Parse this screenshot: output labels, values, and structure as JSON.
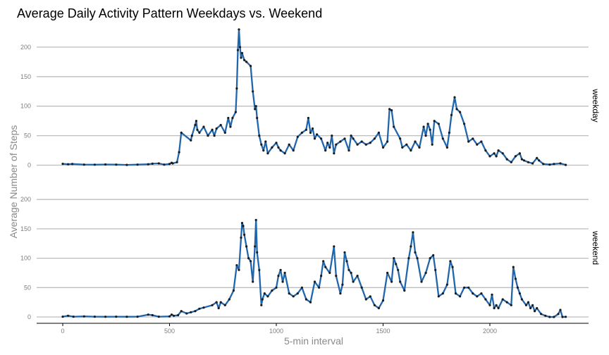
{
  "chart_data": {
    "type": "line",
    "title": "Average Daily Activity Pattern Weekdays vs. Weekend",
    "xlabel": "5-min interval",
    "ylabel": "Average Number of Steps",
    "xlim": [
      0,
      2355
    ],
    "ylim": [
      0,
      230
    ],
    "x_ticks": [
      "0",
      "500",
      "1000",
      "1500",
      "2000"
    ],
    "y_ticks": [
      "0",
      "50",
      "100",
      "150",
      "200"
    ],
    "grid": "horizontal",
    "line_color": "#2166ac",
    "point_color": "#1a1a1a",
    "panels": [
      {
        "name": "weekday",
        "points": [
          [
            0,
            2.3
          ],
          [
            25,
            1.5
          ],
          [
            45,
            2.0
          ],
          [
            100,
            1.0
          ],
          [
            150,
            0.8
          ],
          [
            200,
            1.2
          ],
          [
            250,
            1.0
          ],
          [
            300,
            0.5
          ],
          [
            350,
            1.0
          ],
          [
            400,
            1.5
          ],
          [
            420,
            2.5
          ],
          [
            450,
            3.0
          ],
          [
            475,
            1.0
          ],
          [
            500,
            2.0
          ],
          [
            510,
            4.0
          ],
          [
            515,
            3.0
          ],
          [
            535,
            5.0
          ],
          [
            545,
            22
          ],
          [
            555,
            55
          ],
          [
            600,
            42
          ],
          [
            605,
            50
          ],
          [
            620,
            68
          ],
          [
            625,
            75
          ],
          [
            630,
            60
          ],
          [
            640,
            55
          ],
          [
            660,
            65
          ],
          [
            680,
            50
          ],
          [
            700,
            60
          ],
          [
            710,
            50
          ],
          [
            720,
            62
          ],
          [
            740,
            68
          ],
          [
            760,
            55
          ],
          [
            775,
            80
          ],
          [
            785,
            65
          ],
          [
            795,
            80
          ],
          [
            810,
            90
          ],
          [
            815,
            130
          ],
          [
            820,
            195
          ],
          [
            825,
            230
          ],
          [
            830,
            200
          ],
          [
            835,
            182
          ],
          [
            840,
            190
          ],
          [
            850,
            178
          ],
          [
            860,
            175
          ],
          [
            880,
            168
          ],
          [
            890,
            125
          ],
          [
            900,
            95
          ],
          [
            905,
            100
          ],
          [
            910,
            80
          ],
          [
            920,
            50
          ],
          [
            930,
            35
          ],
          [
            940,
            25
          ],
          [
            950,
            40
          ],
          [
            960,
            20
          ],
          [
            980,
            30
          ],
          [
            1000,
            38
          ],
          [
            1010,
            30
          ],
          [
            1020,
            25
          ],
          [
            1040,
            20
          ],
          [
            1060,
            35
          ],
          [
            1080,
            25
          ],
          [
            1100,
            48
          ],
          [
            1120,
            55
          ],
          [
            1140,
            60
          ],
          [
            1150,
            80
          ],
          [
            1160,
            55
          ],
          [
            1170,
            62
          ],
          [
            1180,
            45
          ],
          [
            1190,
            52
          ],
          [
            1210,
            45
          ],
          [
            1230,
            25
          ],
          [
            1240,
            38
          ],
          [
            1250,
            30
          ],
          [
            1260,
            50
          ],
          [
            1270,
            20
          ],
          [
            1280,
            35
          ],
          [
            1300,
            40
          ],
          [
            1320,
            45
          ],
          [
            1340,
            25
          ],
          [
            1350,
            50
          ],
          [
            1360,
            45
          ],
          [
            1380,
            35
          ],
          [
            1400,
            40
          ],
          [
            1420,
            35
          ],
          [
            1440,
            38
          ],
          [
            1460,
            45
          ],
          [
            1480,
            55
          ],
          [
            1500,
            30
          ],
          [
            1520,
            40
          ],
          [
            1530,
            95
          ],
          [
            1540,
            93
          ],
          [
            1550,
            65
          ],
          [
            1580,
            45
          ],
          [
            1590,
            30
          ],
          [
            1610,
            35
          ],
          [
            1630,
            25
          ],
          [
            1650,
            40
          ],
          [
            1670,
            30
          ],
          [
            1690,
            65
          ],
          [
            1700,
            50
          ],
          [
            1710,
            70
          ],
          [
            1720,
            60
          ],
          [
            1730,
            35
          ],
          [
            1740,
            75
          ],
          [
            1760,
            70
          ],
          [
            1780,
            45
          ],
          [
            1800,
            30
          ],
          [
            1810,
            55
          ],
          [
            1820,
            85
          ],
          [
            1835,
            115
          ],
          [
            1845,
            95
          ],
          [
            1860,
            90
          ],
          [
            1880,
            70
          ],
          [
            1900,
            40
          ],
          [
            1920,
            45
          ],
          [
            1940,
            35
          ],
          [
            1960,
            40
          ],
          [
            1980,
            25
          ],
          [
            2000,
            15
          ],
          [
            2020,
            20
          ],
          [
            2030,
            15
          ],
          [
            2040,
            25
          ],
          [
            2060,
            20
          ],
          [
            2080,
            10
          ],
          [
            2100,
            5
          ],
          [
            2120,
            15
          ],
          [
            2140,
            20
          ],
          [
            2150,
            10
          ],
          [
            2160,
            8
          ],
          [
            2180,
            5
          ],
          [
            2200,
            3
          ],
          [
            2220,
            12
          ],
          [
            2230,
            8
          ],
          [
            2250,
            2
          ],
          [
            2280,
            1
          ],
          [
            2300,
            2
          ],
          [
            2330,
            3
          ],
          [
            2355,
            0.5
          ]
        ]
      },
      {
        "name": "weekend",
        "points": [
          [
            0,
            0.5
          ],
          [
            25,
            2.0
          ],
          [
            50,
            0.5
          ],
          [
            100,
            1.0
          ],
          [
            150,
            0.5
          ],
          [
            200,
            0.3
          ],
          [
            250,
            0.5
          ],
          [
            300,
            0.3
          ],
          [
            350,
            0.5
          ],
          [
            400,
            4.0
          ],
          [
            420,
            3.0
          ],
          [
            450,
            0.5
          ],
          [
            500,
            1.0
          ],
          [
            510,
            4.0
          ],
          [
            520,
            2.0
          ],
          [
            540,
            3.0
          ],
          [
            555,
            10
          ],
          [
            580,
            6.0
          ],
          [
            600,
            8.0
          ],
          [
            620,
            10
          ],
          [
            640,
            14
          ],
          [
            660,
            16
          ],
          [
            700,
            20
          ],
          [
            720,
            25
          ],
          [
            730,
            15
          ],
          [
            740,
            25
          ],
          [
            760,
            20
          ],
          [
            780,
            30
          ],
          [
            800,
            45
          ],
          [
            815,
            88
          ],
          [
            825,
            80
          ],
          [
            835,
            135
          ],
          [
            840,
            160
          ],
          [
            845,
            155
          ],
          [
            850,
            140
          ],
          [
            860,
            120
          ],
          [
            870,
            100
          ],
          [
            880,
            95
          ],
          [
            890,
            60
          ],
          [
            900,
            120
          ],
          [
            905,
            165
          ],
          [
            910,
            110
          ],
          [
            920,
            80
          ],
          [
            930,
            20
          ],
          [
            935,
            30
          ],
          [
            945,
            40
          ],
          [
            960,
            35
          ],
          [
            980,
            45
          ],
          [
            1000,
            50
          ],
          [
            1010,
            70
          ],
          [
            1020,
            80
          ],
          [
            1030,
            60
          ],
          [
            1040,
            75
          ],
          [
            1060,
            40
          ],
          [
            1080,
            35
          ],
          [
            1100,
            40
          ],
          [
            1120,
            50
          ],
          [
            1140,
            30
          ],
          [
            1160,
            25
          ],
          [
            1180,
            60
          ],
          [
            1200,
            50
          ],
          [
            1210,
            70
          ],
          [
            1220,
            95
          ],
          [
            1230,
            85
          ],
          [
            1250,
            75
          ],
          [
            1270,
            120
          ],
          [
            1280,
            70
          ],
          [
            1300,
            40
          ],
          [
            1310,
            55
          ],
          [
            1320,
            110
          ],
          [
            1330,
            95
          ],
          [
            1340,
            80
          ],
          [
            1350,
            75
          ],
          [
            1360,
            60
          ],
          [
            1380,
            70
          ],
          [
            1400,
            50
          ],
          [
            1420,
            30
          ],
          [
            1440,
            35
          ],
          [
            1460,
            20
          ],
          [
            1480,
            15
          ],
          [
            1500,
            28
          ],
          [
            1520,
            75
          ],
          [
            1540,
            60
          ],
          [
            1550,
            100
          ],
          [
            1560,
            90
          ],
          [
            1570,
            80
          ],
          [
            1580,
            60
          ],
          [
            1600,
            45
          ],
          [
            1620,
            100
          ],
          [
            1630,
            120
          ],
          [
            1640,
            144
          ],
          [
            1650,
            110
          ],
          [
            1660,
            100
          ],
          [
            1680,
            60
          ],
          [
            1700,
            75
          ],
          [
            1720,
            100
          ],
          [
            1735,
            105
          ],
          [
            1745,
            80
          ],
          [
            1760,
            35
          ],
          [
            1780,
            40
          ],
          [
            1800,
            55
          ],
          [
            1815,
            95
          ],
          [
            1825,
            85
          ],
          [
            1840,
            40
          ],
          [
            1860,
            35
          ],
          [
            1880,
            50
          ],
          [
            1900,
            50
          ],
          [
            1920,
            40
          ],
          [
            1940,
            35
          ],
          [
            1960,
            40
          ],
          [
            1980,
            30
          ],
          [
            2000,
            20
          ],
          [
            2010,
            38
          ],
          [
            2020,
            15
          ],
          [
            2030,
            20
          ],
          [
            2040,
            15
          ],
          [
            2060,
            30
          ],
          [
            2080,
            25
          ],
          [
            2100,
            20
          ],
          [
            2110,
            85
          ],
          [
            2120,
            65
          ],
          [
            2130,
            50
          ],
          [
            2140,
            40
          ],
          [
            2150,
            30
          ],
          [
            2170,
            20
          ],
          [
            2180,
            25
          ],
          [
            2190,
            15
          ],
          [
            2200,
            20
          ],
          [
            2210,
            10
          ],
          [
            2220,
            15
          ],
          [
            2240,
            5
          ],
          [
            2260,
            2
          ],
          [
            2280,
            0
          ],
          [
            2300,
            0
          ],
          [
            2320,
            5
          ],
          [
            2330,
            12
          ],
          [
            2340,
            0
          ],
          [
            2355,
            0.2
          ]
        ]
      }
    ]
  }
}
